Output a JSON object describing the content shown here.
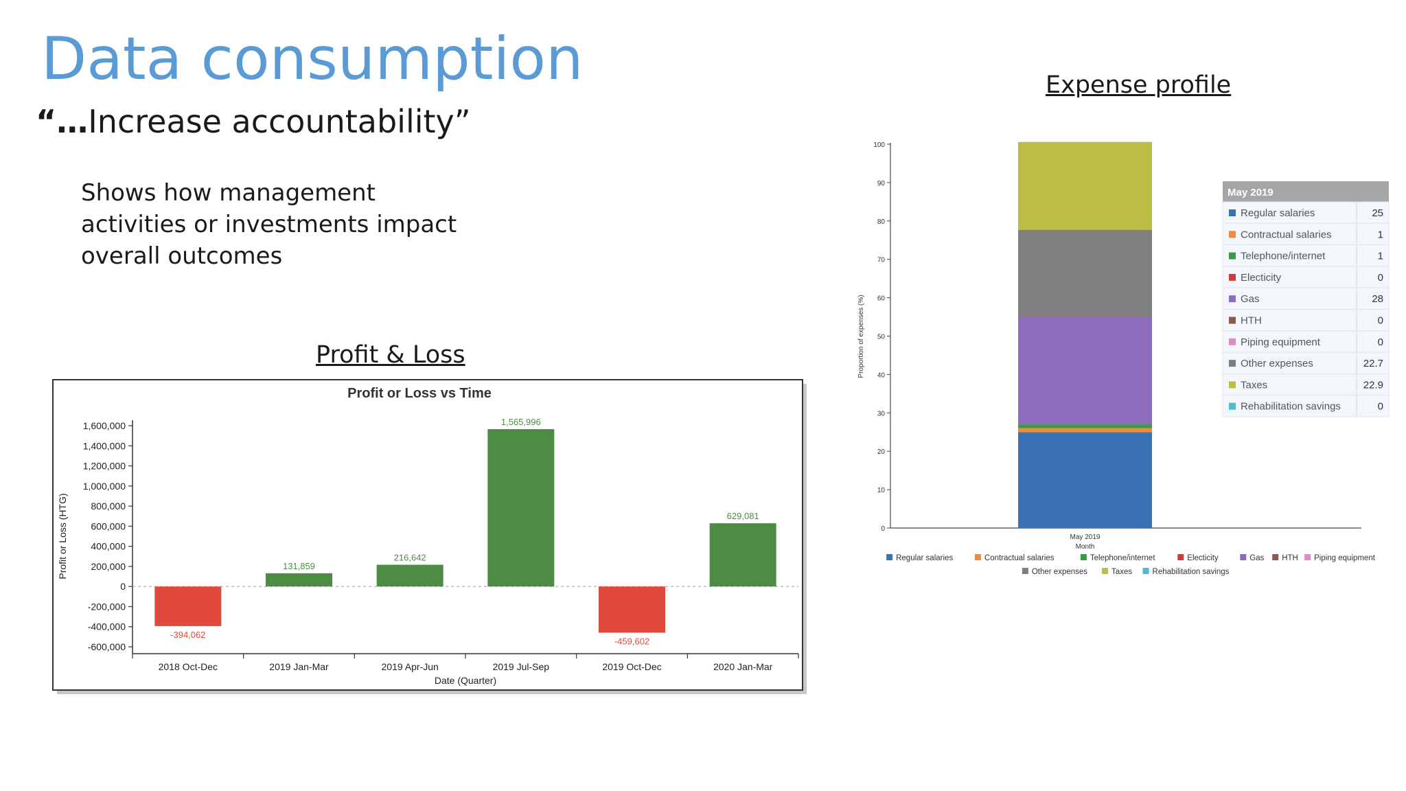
{
  "slide": {
    "title": "Data consumption",
    "subtitle_ellipsis": "“…",
    "subtitle_text": "Increase accountability”",
    "body": "Shows how management activities or investments impact overall outcomes"
  },
  "headings": {
    "profit_loss": "Profit & Loss",
    "expense_profile": "Expense profile"
  },
  "chart_data": [
    {
      "type": "bar",
      "title": "Profit or Loss vs Time",
      "xlabel": "Date (Quarter)",
      "ylabel": "Profit or Loss (HTG)",
      "categories": [
        "2018 Oct-Dec",
        "2019 Jan-Mar",
        "2019 Apr-Jun",
        "2019 Jul-Sep",
        "2019 Oct-Dec",
        "2020 Jan-Mar"
      ],
      "values": [
        -394062,
        131859,
        216642,
        1565996,
        -459602,
        629081
      ],
      "value_labels": [
        "-394,062",
        "131,859",
        "216,642",
        "1,565,996",
        "-459,602",
        "629,081"
      ],
      "yticks": [
        1600000,
        1400000,
        1200000,
        1000000,
        800000,
        600000,
        400000,
        200000,
        0,
        -200000,
        -400000,
        -600000
      ],
      "ytick_labels": [
        "1,600,000",
        "1,400,000",
        "1,200,000",
        "1,000,000",
        "800,000",
        "600,000",
        "400,000",
        "200,000",
        "0",
        "-200,000",
        "-400,000",
        "-600,000"
      ],
      "ylim": [
        -600000,
        1600000
      ],
      "colors": {
        "positive": "#4e8b45",
        "negative": "#e0493b"
      },
      "grid": false,
      "zero_line": "dashed"
    },
    {
      "type": "bar",
      "stacked": true,
      "xlabel": "Month",
      "ylabel": "Proportion of expenses (%)",
      "categories": [
        "May 2019"
      ],
      "ylim": [
        0,
        100
      ],
      "yticks": [
        0,
        10,
        20,
        30,
        40,
        50,
        60,
        70,
        80,
        90,
        100
      ],
      "series": [
        {
          "name": "Regular salaries",
          "values": [
            25
          ],
          "color": "#3a72b5"
        },
        {
          "name": "Contractual salaries",
          "values": [
            1
          ],
          "color": "#f08a3c"
        },
        {
          "name": "Telephone/internet",
          "values": [
            1
          ],
          "color": "#3a9a45"
        },
        {
          "name": "Electicity",
          "values": [
            0
          ],
          "color": "#d63a3a"
        },
        {
          "name": "Gas",
          "values": [
            28
          ],
          "color": "#8e6bbd"
        },
        {
          "name": "HTH",
          "values": [
            0
          ],
          "color": "#8a5a4a"
        },
        {
          "name": "Piping equipment",
          "values": [
            0
          ],
          "color": "#e28ac8"
        },
        {
          "name": "Other expenses",
          "values": [
            22.7
          ],
          "color": "#7f7f7f"
        },
        {
          "name": "Taxes",
          "values": [
            22.9
          ],
          "color": "#bcbd45"
        },
        {
          "name": "Rehabilitation savings",
          "values": [
            0
          ],
          "color": "#4bbdd0"
        }
      ],
      "tooltip": {
        "title": "May 2019",
        "rows": [
          {
            "name": "Regular salaries",
            "value": "25"
          },
          {
            "name": "Contractual salaries",
            "value": "1"
          },
          {
            "name": "Telephone/internet",
            "value": "1"
          },
          {
            "name": "Electicity",
            "value": "0"
          },
          {
            "name": "Gas",
            "value": "28"
          },
          {
            "name": "HTH",
            "value": "0"
          },
          {
            "name": "Piping equipment",
            "value": "0"
          },
          {
            "name": "Other expenses",
            "value": "22.7"
          },
          {
            "name": "Taxes",
            "value": "22.9"
          },
          {
            "name": "Rehabilitation savings",
            "value": "0"
          }
        ]
      },
      "legend": "bottom"
    }
  ]
}
